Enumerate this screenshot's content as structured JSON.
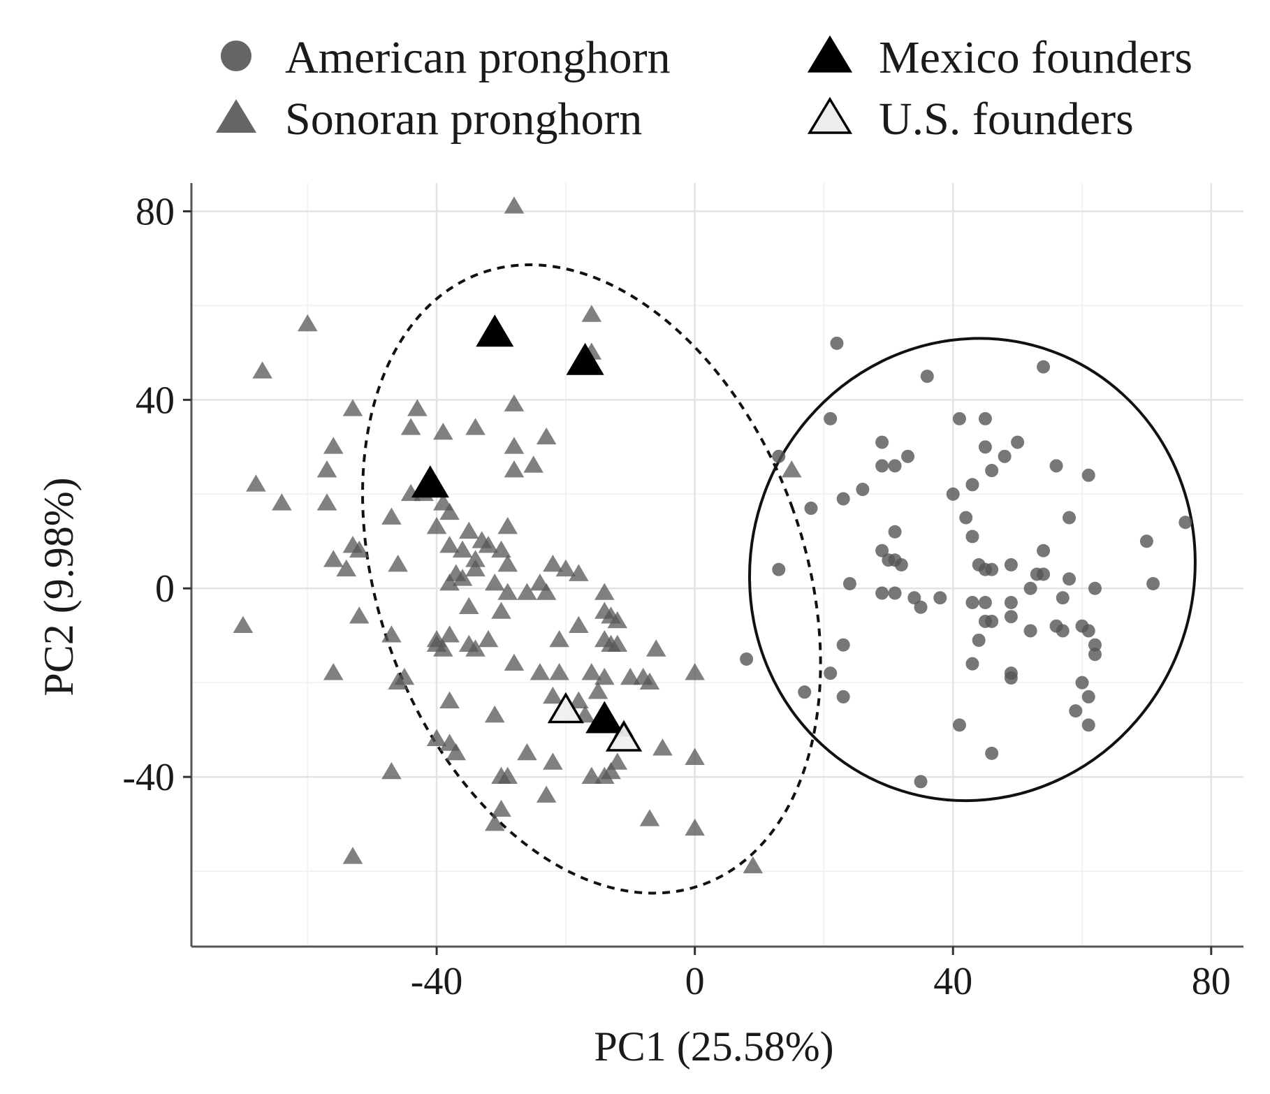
{
  "chart_data": {
    "type": "scatter",
    "xlabel": "PC1  (25.58%)",
    "ylabel": "PC2  (9.98%)",
    "xlim": [
      -78,
      85
    ],
    "ylim": [
      -76,
      86
    ],
    "xticks": [
      -40,
      0,
      40,
      80
    ],
    "yticks": [
      80,
      40,
      0,
      -40
    ],
    "x_tick_labels": [
      "-40",
      "0",
      "40",
      "80"
    ],
    "y_tick_labels": [
      "80",
      "40",
      "0",
      "-40"
    ],
    "grid": true,
    "legend_position": "top",
    "legend": [
      {
        "label": "American pronghorn",
        "shape": "circle",
        "fill": "#666666",
        "stroke": "none"
      },
      {
        "label": "Sonoran pronghorn",
        "shape": "triangle",
        "fill": "#666666",
        "stroke": "none"
      },
      {
        "label": "Mexico founders",
        "shape": "triangle",
        "fill": "#000000",
        "stroke": "#000000"
      },
      {
        "label": "U.S. founders",
        "shape": "triangle",
        "fill": "#eeeeee",
        "stroke": "#000000"
      }
    ],
    "series": [
      {
        "name": "American pronghorn",
        "marker": "circle",
        "color": "#555555",
        "points": [
          [
            22,
            52
          ],
          [
            36,
            45
          ],
          [
            54,
            47
          ],
          [
            21,
            36
          ],
          [
            41,
            36
          ],
          [
            45,
            36
          ],
          [
            13,
            28
          ],
          [
            29,
            31
          ],
          [
            33,
            28
          ],
          [
            29,
            26
          ],
          [
            31,
            26
          ],
          [
            45,
            30
          ],
          [
            48,
            28
          ],
          [
            50,
            31
          ],
          [
            46,
            25
          ],
          [
            56,
            26
          ],
          [
            61,
            24
          ],
          [
            18,
            17
          ],
          [
            23,
            19
          ],
          [
            26,
            21
          ],
          [
            40,
            20
          ],
          [
            43,
            22
          ],
          [
            76,
            14
          ],
          [
            42,
            15
          ],
          [
            58,
            15
          ],
          [
            31,
            12
          ],
          [
            43,
            11
          ],
          [
            70,
            10
          ],
          [
            29,
            8
          ],
          [
            31,
            6
          ],
          [
            32,
            5
          ],
          [
            44,
            5
          ],
          [
            46,
            4
          ],
          [
            45,
            4
          ],
          [
            49,
            5
          ],
          [
            54,
            8
          ],
          [
            13,
            4
          ],
          [
            30,
            6
          ],
          [
            24,
            1
          ],
          [
            71,
            1
          ],
          [
            53,
            3
          ],
          [
            54,
            3
          ],
          [
            58,
            2
          ],
          [
            52,
            0
          ],
          [
            62,
            0
          ],
          [
            29,
            -1
          ],
          [
            31,
            -1
          ],
          [
            34,
            -2
          ],
          [
            35,
            -4
          ],
          [
            38,
            -2
          ],
          [
            43,
            -3
          ],
          [
            45,
            -3
          ],
          [
            49,
            -3
          ],
          [
            57,
            -2
          ],
          [
            45,
            -7
          ],
          [
            46,
            -7
          ],
          [
            49,
            -6
          ],
          [
            52,
            -9
          ],
          [
            56,
            -8
          ],
          [
            57,
            -9
          ],
          [
            60,
            -8
          ],
          [
            61,
            -9
          ],
          [
            44,
            -11
          ],
          [
            23,
            -12
          ],
          [
            62,
            -12
          ],
          [
            62,
            -14
          ],
          [
            8,
            -15
          ],
          [
            43,
            -16
          ],
          [
            21,
            -18
          ],
          [
            49,
            -18
          ],
          [
            49,
            -19
          ],
          [
            60,
            -20
          ],
          [
            17,
            -22
          ],
          [
            23,
            -23
          ],
          [
            61,
            -23
          ],
          [
            59,
            -26
          ],
          [
            41,
            -29
          ],
          [
            61,
            -29
          ],
          [
            46,
            -35
          ],
          [
            35,
            -41
          ]
        ]
      },
      {
        "name": "Sonoran pronghorn",
        "marker": "triangle",
        "color": "#555555",
        "points": [
          [
            -28,
            81
          ],
          [
            -16,
            58
          ],
          [
            -60,
            56
          ],
          [
            -67,
            46
          ],
          [
            -16,
            50
          ],
          [
            -53,
            38
          ],
          [
            -43,
            38
          ],
          [
            -44,
            34
          ],
          [
            -39,
            33
          ],
          [
            -34,
            34
          ],
          [
            -28,
            39
          ],
          [
            -23,
            32
          ],
          [
            -28,
            30
          ],
          [
            -28,
            25
          ],
          [
            -25,
            26
          ],
          [
            -56,
            30
          ],
          [
            -57,
            25
          ],
          [
            -68,
            22
          ],
          [
            -64,
            18
          ],
          [
            -57,
            18
          ],
          [
            -42,
            20
          ],
          [
            -44,
            20
          ],
          [
            -39,
            18
          ],
          [
            -38,
            16
          ],
          [
            -47,
            15
          ],
          [
            -40,
            13
          ],
          [
            -35,
            12
          ],
          [
            -33,
            10
          ],
          [
            -29,
            13
          ],
          [
            -53,
            9
          ],
          [
            -52,
            8
          ],
          [
            -56,
            6
          ],
          [
            -54,
            4
          ],
          [
            -46,
            5
          ],
          [
            -38,
            9
          ],
          [
            -36,
            8
          ],
          [
            -34,
            6
          ],
          [
            -32,
            9
          ],
          [
            -30,
            8
          ],
          [
            -29,
            5
          ],
          [
            -34,
            4
          ],
          [
            -37,
            3
          ],
          [
            -31,
            1
          ],
          [
            -36,
            2
          ],
          [
            -38,
            1
          ],
          [
            -24,
            1
          ],
          [
            -22,
            5
          ],
          [
            -20,
            4
          ],
          [
            -18,
            3
          ],
          [
            -29,
            -1
          ],
          [
            -26,
            -1
          ],
          [
            -23,
            -1
          ],
          [
            -14,
            -1
          ],
          [
            -14,
            -5
          ],
          [
            -12,
            -7
          ],
          [
            -13,
            -6
          ],
          [
            -35,
            -4
          ],
          [
            -52,
            -6
          ],
          [
            -30,
            -5
          ],
          [
            -70,
            -8
          ],
          [
            -47,
            -10
          ],
          [
            -40,
            -11
          ],
          [
            -38,
            -10
          ],
          [
            -40,
            -12
          ],
          [
            -39,
            -13
          ],
          [
            -32,
            -11
          ],
          [
            -34,
            -13
          ],
          [
            -35,
            -12
          ],
          [
            -21,
            -11
          ],
          [
            -18,
            -8
          ],
          [
            -14,
            -11
          ],
          [
            -13,
            -12
          ],
          [
            -12,
            -12
          ],
          [
            -6,
            -13
          ],
          [
            -56,
            -18
          ],
          [
            -45,
            -19
          ],
          [
            -46,
            -20
          ],
          [
            -28,
            -16
          ],
          [
            -24,
            -18
          ],
          [
            -21,
            -18
          ],
          [
            -16,
            -18
          ],
          [
            -14,
            -19
          ],
          [
            -10,
            -19
          ],
          [
            -8,
            -19
          ],
          [
            -7,
            -20
          ],
          [
            0,
            -18
          ],
          [
            -38,
            -24
          ],
          [
            -22,
            -23
          ],
          [
            -18,
            -24
          ],
          [
            -15,
            -22
          ],
          [
            -31,
            -27
          ],
          [
            -17,
            -27
          ],
          [
            -11,
            -30
          ],
          [
            -40,
            -32
          ],
          [
            -38,
            -33
          ],
          [
            -37,
            -35
          ],
          [
            -26,
            -35
          ],
          [
            -22,
            -37
          ],
          [
            -12,
            -37
          ],
          [
            -5,
            -34
          ],
          [
            0,
            -36
          ],
          [
            -47,
            -39
          ],
          [
            -30,
            -40
          ],
          [
            -29,
            -40
          ],
          [
            -16,
            -40
          ],
          [
            -14,
            -40
          ],
          [
            -13,
            -39
          ],
          [
            -23,
            -44
          ],
          [
            -30,
            -47
          ],
          [
            -31,
            -50
          ],
          [
            -7,
            -49
          ],
          [
            0,
            -51
          ],
          [
            -53,
            -57
          ],
          [
            9,
            -59
          ],
          [
            15,
            25
          ]
        ]
      },
      {
        "name": "Mexico founders",
        "marker": "triangle",
        "color": "#000000",
        "points": [
          [
            -31,
            54
          ],
          [
            -17,
            48
          ],
          [
            -41,
            22
          ],
          [
            -14,
            -28
          ]
        ]
      },
      {
        "name": "U.S. founders",
        "marker": "triangle",
        "color": "#eeeeee",
        "points": [
          [
            -20,
            -26
          ],
          [
            -11,
            -32
          ]
        ]
      }
    ],
    "ellipses": [
      {
        "group": "Sonoran pronghorn",
        "style": "dashed",
        "center": [
          -16,
          2
        ],
        "semi_axes": [
          33,
          69
        ],
        "rotation_deg": -20
      },
      {
        "group": "American pronghorn",
        "style": "solid",
        "center": [
          43,
          4
        ],
        "semi_axes": [
          36,
          47
        ],
        "rotation_deg": -70
      }
    ]
  }
}
